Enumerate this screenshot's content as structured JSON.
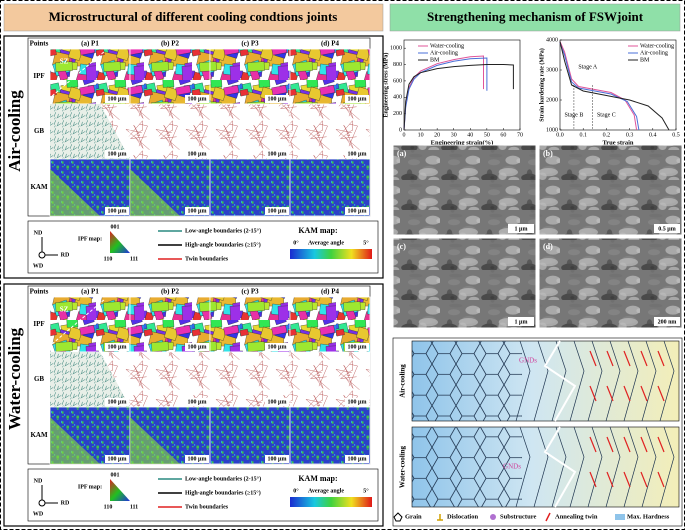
{
  "left_title": "Microstructural of different cooling condtions joints",
  "right_title": "Strengthening mechanism of FSWjoint",
  "panels": [
    {
      "name": "Air-cooling",
      "columns": [
        "Points",
        "(a) P1",
        "(b) P2",
        "(c) P3",
        "(d) P4"
      ],
      "rows": [
        "IPF",
        "GB",
        "KAM"
      ],
      "scale_bar": "100 μm",
      "sz": "SZ",
      "legend": {
        "nd": "ND",
        "rd": "RD",
        "wd": "WD",
        "ipf_map": "IPF map:",
        "ipf_corners": [
          "001",
          "110",
          "111"
        ],
        "boundaries": [
          "Low-angle boundaries (2-15°)",
          "High-angle boundaries (≥15°)",
          "Twin boundaries"
        ],
        "kam_map": "KAM map:",
        "kam_min": "0°",
        "kam_mid": "Average angle",
        "kam_max": "5°"
      }
    },
    {
      "name": "Water-cooling",
      "columns": [
        "Points",
        "(a) P1",
        "(b) P2",
        "(c) P3",
        "(d) P4"
      ],
      "rows": [
        "IPF",
        "GB",
        "KAM"
      ],
      "scale_bar": "100 μm",
      "sz": "SZ",
      "legend": {
        "nd": "ND",
        "rd": "RD",
        "wd": "WD",
        "ipf_map": "IPF map:",
        "ipf_corners": [
          "001",
          "110",
          "111"
        ],
        "boundaries": [
          "Low-angle boundaries (2-15°)",
          "High-angle boundaries (≥15°)",
          "Twin boundaries"
        ],
        "kam_map": "KAM map:",
        "kam_min": "0°",
        "kam_mid": "Average angle",
        "kam_max": "5°"
      }
    }
  ],
  "chart_data": [
    {
      "type": "line",
      "x_label": "Engineering strain(%)",
      "y_label": "Engineering stress (MPa)",
      "xlim": [
        0,
        70
      ],
      "xticks": [
        0,
        10,
        20,
        30,
        40,
        50,
        60,
        70
      ],
      "ylim": [
        0,
        1100
      ],
      "yticks": [
        0,
        200,
        400,
        600,
        800,
        1000
      ],
      "legend": "upper left",
      "series": [
        {
          "name": "Water-cooling",
          "color": "#e0559a",
          "x": [
            0,
            1,
            3,
            6,
            10,
            20,
            30,
            40,
            48,
            48
          ],
          "values": [
            0,
            300,
            520,
            640,
            720,
            810,
            860,
            895,
            905,
            500
          ]
        },
        {
          "name": "Air-cooling",
          "color": "#4a6fd8",
          "x": [
            0,
            1,
            3,
            6,
            10,
            20,
            30,
            40,
            50,
            50
          ],
          "values": [
            0,
            280,
            500,
            620,
            700,
            790,
            840,
            870,
            880,
            480
          ]
        },
        {
          "name": "BM",
          "color": "#222222",
          "x": [
            0,
            1,
            3,
            6,
            10,
            20,
            30,
            40,
            50,
            60,
            66,
            66
          ],
          "values": [
            0,
            350,
            560,
            650,
            700,
            750,
            775,
            790,
            800,
            800,
            795,
            500
          ]
        }
      ]
    },
    {
      "type": "line",
      "x_label": "True strain",
      "y_label": "Strain hardening rate (MPa)",
      "xlim": [
        0,
        0.5
      ],
      "xticks": [
        {
          "value": 0,
          "label": "0.0"
        },
        0.1,
        0.2,
        0.3,
        0.4,
        0.5
      ],
      "ylim": [
        1000,
        4000
      ],
      "yticks": [
        1000,
        2000,
        3000,
        4000
      ],
      "legend": "upper right",
      "annotations": [
        "Stage A",
        "Stage B",
        "Stage C"
      ],
      "series": [
        {
          "name": "Water-cooling",
          "color": "#e0559a",
          "x": [
            0.0,
            0.02,
            0.05,
            0.08,
            0.15,
            0.22,
            0.28,
            0.32,
            0.33
          ],
          "values": [
            3950,
            3600,
            2700,
            2450,
            2350,
            2250,
            2000,
            1500,
            1000
          ]
        },
        {
          "name": "Air-cooling",
          "color": "#4a6fd8",
          "x": [
            0.0,
            0.02,
            0.05,
            0.08,
            0.15,
            0.22,
            0.29,
            0.33,
            0.34
          ],
          "values": [
            3900,
            3500,
            2600,
            2400,
            2300,
            2200,
            1950,
            1450,
            1000
          ]
        },
        {
          "name": "BM",
          "color": "#222222",
          "x": [
            0.0,
            0.02,
            0.05,
            0.1,
            0.2,
            0.3,
            0.38,
            0.44,
            0.47
          ],
          "values": [
            3950,
            3300,
            2500,
            2300,
            2150,
            2000,
            1800,
            1400,
            1000
          ]
        }
      ]
    }
  ],
  "tem": [
    {
      "label": "(a)",
      "scale": "1 μm"
    },
    {
      "label": "(b)",
      "scale": "0.5 μm"
    },
    {
      "label": "(c)",
      "scale": "1 μm"
    },
    {
      "label": "(d)",
      "scale": "200 nm"
    }
  ],
  "schematic": {
    "rows": [
      "Air-cooling",
      "Water-cooling"
    ],
    "gnds": [
      "GNDs",
      "GNDs"
    ],
    "legend": [
      "Grain",
      "Dislocation",
      "Substructure",
      "Annealing twin",
      "Max. Hardness"
    ]
  }
}
